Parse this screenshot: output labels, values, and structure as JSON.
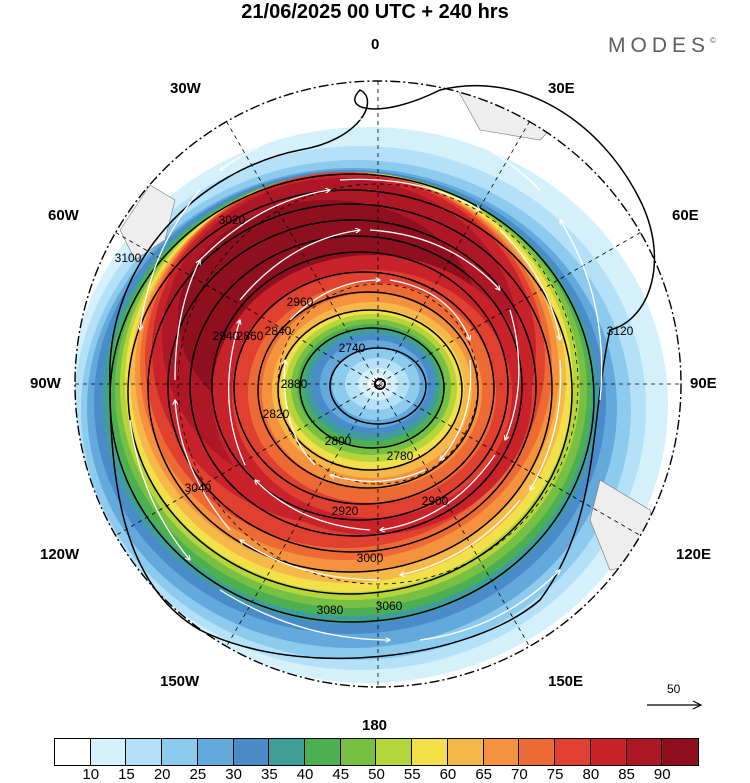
{
  "title": "21/06/2025  00 UTC  + 240 hrs",
  "brand": "MODES",
  "brand_mark": "©",
  "longitude_labels": {
    "n": "0",
    "s": "180",
    "w90": "90W",
    "e90": "90E",
    "w30": "30W",
    "e30": "30E",
    "w60": "60W",
    "e60": "60E",
    "w120": "120W",
    "e120": "120E",
    "w150": "150W",
    "e150": "150E"
  },
  "contour_labels": [
    "2740",
    "2780",
    "2800",
    "2820",
    "2840",
    "2860",
    "2880",
    "2900",
    "2920",
    "2940",
    "2960",
    "3000",
    "3020",
    "3040",
    "3060",
    "3080",
    "3100",
    "3120"
  ],
  "vector_scale": {
    "value": "50",
    "icon": "arrow-right-icon"
  },
  "colorbar": {
    "colors": [
      "#ffffff",
      "#d4f0fb",
      "#b4e1f7",
      "#8ccaee",
      "#64a9dc",
      "#4a8cca",
      "#3f9e9a",
      "#4cb050",
      "#78c044",
      "#b6d53a",
      "#f2e04a",
      "#f7b84a",
      "#f5923e",
      "#ee6a35",
      "#e0402f",
      "#c8232b",
      "#ad1726",
      "#8e0f1e"
    ],
    "ticks": [
      "10",
      "15",
      "20",
      "25",
      "30",
      "35",
      "40",
      "45",
      "50",
      "55",
      "60",
      "65",
      "70",
      "75",
      "80",
      "85",
      "90"
    ]
  }
}
